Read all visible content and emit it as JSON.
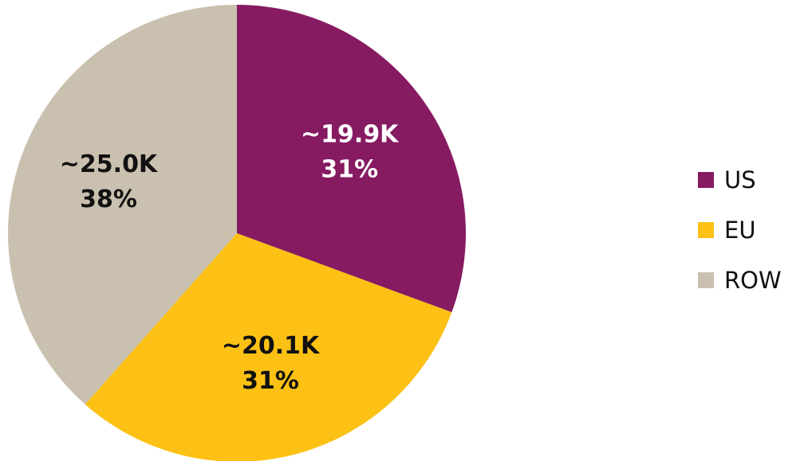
{
  "chart_data": {
    "type": "pie",
    "title": "",
    "start_angle_deg": 0,
    "direction": "clockwise",
    "slices": [
      {
        "label": "US",
        "value": 19.9,
        "value_text": "~19.9K",
        "percent_text": "31%",
        "color": "#861B62",
        "text_color": "#ffffff"
      },
      {
        "label": "EU",
        "value": 20.1,
        "value_text": "~20.1K",
        "percent_text": "31%",
        "color": "#FCC114",
        "text_color": "#111111"
      },
      {
        "label": "ROW",
        "value": 25.0,
        "value_text": "~25.0K",
        "percent_text": "38%",
        "color": "#CAC0AF",
        "text_color": "#111111"
      }
    ],
    "legend": {
      "placement": "right",
      "items": [
        "US",
        "EU",
        "ROW"
      ]
    }
  }
}
